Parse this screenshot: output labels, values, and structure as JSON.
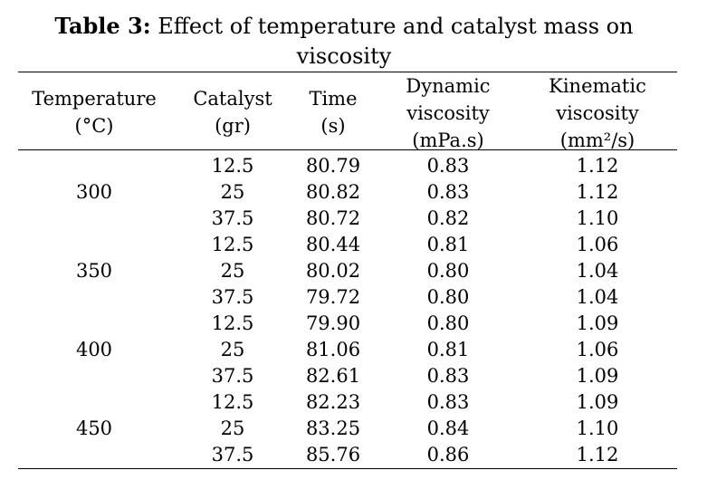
{
  "caption": {
    "label": "Table 3:",
    "text_line1": "Effect of temperature and catalyst mass on",
    "text_line2": "viscosity"
  },
  "headers": {
    "temperature": [
      "Temperature",
      "(°C)"
    ],
    "catalyst": [
      "Catalyst",
      "(gr)"
    ],
    "time": [
      "Time",
      "(s)"
    ],
    "dynamic": [
      "Dynamic",
      "viscosity",
      "(mPa.s)"
    ],
    "kinematic": [
      "Kinematic",
      "viscosity",
      "(mm²/s)"
    ]
  },
  "temperatures": [
    "300",
    "350",
    "400",
    "450"
  ],
  "rows": [
    {
      "catalyst": "12.5",
      "time": "80.79",
      "dynamic": "0.83",
      "kinematic": "1.12"
    },
    {
      "catalyst": "25",
      "time": "80.82",
      "dynamic": "0.83",
      "kinematic": "1.12"
    },
    {
      "catalyst": "37.5",
      "time": "80.72",
      "dynamic": "0.82",
      "kinematic": "1.10"
    },
    {
      "catalyst": "12.5",
      "time": "80.44",
      "dynamic": "0.81",
      "kinematic": "1.06"
    },
    {
      "catalyst": "25",
      "time": "80.02",
      "dynamic": "0.80",
      "kinematic": "1.04"
    },
    {
      "catalyst": "37.5",
      "time": "79.72",
      "dynamic": "0.80",
      "kinematic": "1.04"
    },
    {
      "catalyst": "12.5",
      "time": "79.90",
      "dynamic": "0.80",
      "kinematic": "1.09"
    },
    {
      "catalyst": "25",
      "time": "81.06",
      "dynamic": "0.81",
      "kinematic": "1.06"
    },
    {
      "catalyst": "37.5",
      "time": "82.61",
      "dynamic": "0.83",
      "kinematic": "1.09"
    },
    {
      "catalyst": "12.5",
      "time": "82.23",
      "dynamic": "0.83",
      "kinematic": "1.09"
    },
    {
      "catalyst": "25",
      "time": "83.25",
      "dynamic": "0.84",
      "kinematic": "1.10"
    },
    {
      "catalyst": "37.5",
      "time": "85.76",
      "dynamic": "0.86",
      "kinematic": "1.12"
    }
  ]
}
